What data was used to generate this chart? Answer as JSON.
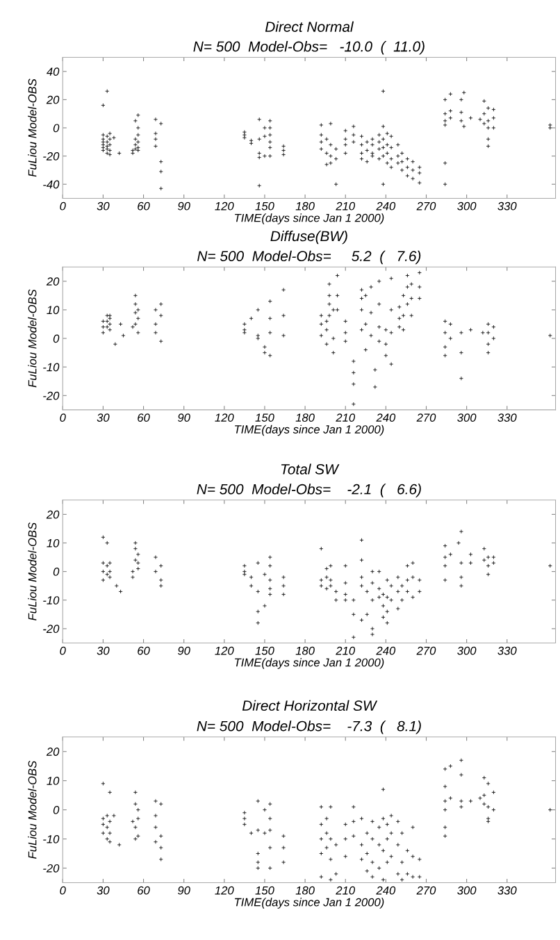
{
  "chart_data": [
    {
      "type": "scatter",
      "title": "Direct Normal",
      "subtitle": "N= 500  Model-Obs=   -10.0  (  11.0)",
      "xlabel": "TIME(days since Jan 1 2000)",
      "ylabel": "FuLiou Model-OBS",
      "xlim": [
        0,
        366
      ],
      "xticks": [
        0,
        30,
        60,
        90,
        120,
        150,
        180,
        210,
        240,
        270,
        300,
        330
      ],
      "ylim": [
        -50,
        50
      ],
      "yticks": [
        -40,
        -20,
        0,
        20,
        40
      ],
      "marker": "cross",
      "grid": false,
      "series": [
        {
          "color": "#000000",
          "x": [
            30,
            30,
            30,
            30,
            30,
            30,
            30,
            33,
            33,
            33,
            33,
            33,
            33,
            35,
            35,
            35,
            35,
            35,
            38,
            42,
            52,
            52,
            54,
            54,
            54,
            54,
            56,
            56,
            56,
            56,
            56,
            56,
            69,
            69,
            69,
            69,
            73,
            73,
            73,
            73,
            135,
            135,
            135,
            140,
            140,
            146,
            146,
            146,
            146,
            146,
            150,
            150,
            150,
            154,
            154,
            154,
            154,
            154,
            154,
            164,
            164,
            164,
            192,
            192,
            192,
            192,
            196,
            196,
            196,
            199,
            199,
            199,
            199,
            203,
            203,
            203,
            210,
            210,
            210,
            210,
            216,
            216,
            216,
            222,
            222,
            222,
            222,
            226,
            226,
            226,
            230,
            230,
            230,
            230,
            235,
            235,
            235,
            235,
            238,
            238,
            238,
            238,
            238,
            238,
            241,
            241,
            241,
            241,
            244,
            244,
            244,
            244,
            249,
            249,
            249,
            252,
            252,
            252,
            256,
            256,
            256,
            260,
            260,
            260,
            265,
            265,
            265,
            284,
            284,
            284,
            284,
            284,
            284,
            288,
            288,
            288,
            296,
            296,
            296,
            298,
            298,
            303,
            310,
            313,
            313,
            313,
            316,
            316,
            316,
            316,
            316,
            320,
            320,
            320,
            362,
            362
          ],
          "values": [
            16,
            -5,
            -8,
            -10,
            -12,
            -14,
            -16,
            26,
            -6,
            -10,
            -13,
            -15,
            -18,
            -4,
            -8,
            -12,
            -16,
            -19,
            -7,
            -18,
            -16,
            -18,
            5,
            -8,
            -12,
            -15,
            9,
            0,
            -5,
            -10,
            -14,
            -16,
            6,
            -4,
            -8,
            -13,
            3,
            -24,
            -31,
            -43,
            -3,
            -5,
            -7,
            -9,
            -11,
            6,
            -8,
            -18,
            -21,
            -41,
            0,
            -6,
            -20,
            5,
            0,
            -5,
            -10,
            -14,
            -20,
            -13,
            -16,
            -19,
            2,
            -5,
            -10,
            -15,
            -8,
            -18,
            -26,
            3,
            -12,
            -20,
            -25,
            -15,
            -22,
            -40,
            -2,
            -8,
            -12,
            -18,
            1,
            -5,
            -10,
            -6,
            -12,
            -18,
            -22,
            -10,
            -16,
            -24,
            -8,
            -12,
            -18,
            -20,
            -5,
            -10,
            -15,
            -22,
            26,
            1,
            -8,
            -14,
            -20,
            -40,
            -4,
            -12,
            -18,
            -25,
            -6,
            -14,
            -22,
            -28,
            -12,
            -20,
            -25,
            -18,
            -24,
            -30,
            -22,
            -28,
            -34,
            -24,
            -30,
            -36,
            -28,
            -32,
            -39,
            20,
            10,
            5,
            2,
            -25,
            -40,
            12,
            7,
            24,
            20,
            11,
            5,
            25,
            1,
            7,
            6,
            19,
            10,
            3,
            14,
            5,
            0,
            -8,
            -13,
            13,
            7,
            0,
            0,
            2
          ]
        }
      ]
    },
    {
      "type": "scatter",
      "title": "Diffuse(BW)",
      "subtitle": "N= 500  Model-Obs=     5.2  (   7.6)",
      "xlabel": "TIME(days since Jan 1 2000)",
      "ylabel": "FuLiou Model-OBS",
      "xlim": [
        0,
        366
      ],
      "xticks": [
        0,
        30,
        60,
        90,
        120,
        150,
        180,
        210,
        240,
        270,
        300,
        330
      ],
      "ylim": [
        -25,
        25
      ],
      "yticks": [
        -20,
        -10,
        0,
        10,
        20
      ],
      "marker": "cross",
      "grid": false,
      "series": [
        {
          "color": "#000000",
          "x": [
            30,
            30,
            30,
            33,
            33,
            33,
            35,
            35,
            35,
            35,
            39,
            43,
            45,
            52,
            54,
            54,
            54,
            54,
            56,
            56,
            56,
            69,
            69,
            69,
            73,
            73,
            73,
            135,
            135,
            135,
            140,
            145,
            145,
            145,
            150,
            150,
            154,
            154,
            154,
            154,
            164,
            164,
            164,
            192,
            192,
            192,
            196,
            196,
            196,
            198,
            198,
            198,
            198,
            201,
            201,
            201,
            204,
            204,
            204,
            210,
            210,
            210,
            216,
            216,
            216,
            216,
            222,
            222,
            222,
            222,
            225,
            225,
            225,
            229,
            229,
            229,
            232,
            232,
            235,
            235,
            235,
            235,
            240,
            240,
            240,
            244,
            244,
            244,
            244,
            250,
            250,
            250,
            253,
            253,
            253,
            256,
            256,
            256,
            259,
            259,
            259,
            265,
            265,
            265,
            284,
            284,
            284,
            284,
            288,
            288,
            296,
            296,
            296,
            303,
            312,
            316,
            316,
            316,
            316,
            320,
            320,
            362
          ],
          "values": [
            2,
            4,
            6,
            4,
            6,
            8,
            5,
            7,
            8,
            3,
            -2,
            5,
            1,
            4,
            5,
            9,
            12,
            15,
            7,
            10,
            2,
            10,
            5,
            2,
            12,
            8,
            -1,
            2,
            3,
            5,
            7,
            10,
            1,
            0,
            -3,
            -5,
            13,
            7,
            2,
            -6,
            17,
            8,
            1,
            8,
            5,
            1,
            6,
            3,
            -2,
            19,
            15,
            12,
            8,
            10,
            0,
            -5,
            22,
            15,
            10,
            6,
            2,
            -1,
            -8,
            -12,
            -16,
            -23,
            17,
            14,
            10,
            3,
            15,
            5,
            -4,
            18,
            9,
            1,
            -11,
            -17,
            20,
            12,
            4,
            -1,
            3,
            -2,
            -6,
            21,
            10,
            2,
            -9,
            11,
            7,
            4,
            15,
            8,
            3,
            22,
            18,
            12,
            19,
            14,
            8,
            23,
            18,
            14,
            6,
            2,
            -3,
            -6,
            5,
            0,
            2,
            -5,
            -14,
            3,
            2,
            5,
            2,
            -2,
            -5,
            4,
            0,
            1
          ]
        }
      ]
    },
    {
      "type": "scatter",
      "title": "Total SW",
      "subtitle": "N= 500  Model-Obs=    -2.1  (   6.6)",
      "xlabel": "TIME(days since Jan 1 2000)",
      "ylabel": "FuLiou Model-OBS",
      "xlim": [
        0,
        366
      ],
      "xticks": [
        0,
        30,
        60,
        90,
        120,
        150,
        180,
        210,
        240,
        270,
        300,
        330
      ],
      "ylim": [
        -25,
        25
      ],
      "yticks": [
        -20,
        -10,
        0,
        10,
        20
      ],
      "marker": "cross",
      "grid": false,
      "series": [
        {
          "color": "#000000",
          "x": [
            30,
            30,
            30,
            30,
            33,
            33,
            33,
            35,
            35,
            35,
            40,
            43,
            52,
            52,
            54,
            54,
            54,
            56,
            56,
            56,
            69,
            69,
            73,
            73,
            73,
            135,
            135,
            135,
            140,
            140,
            145,
            145,
            145,
            145,
            150,
            150,
            154,
            154,
            154,
            154,
            154,
            164,
            164,
            164,
            192,
            192,
            192,
            196,
            196,
            196,
            199,
            199,
            199,
            203,
            203,
            210,
            210,
            210,
            210,
            216,
            216,
            216,
            222,
            222,
            222,
            222,
            222,
            226,
            226,
            230,
            230,
            230,
            230,
            230,
            235,
            235,
            235,
            238,
            238,
            238,
            241,
            241,
            241,
            241,
            244,
            244,
            249,
            249,
            249,
            252,
            252,
            256,
            256,
            256,
            260,
            260,
            260,
            265,
            265,
            284,
            284,
            284,
            284,
            288,
            294,
            296,
            296,
            296,
            296,
            303,
            303,
            313,
            313,
            316,
            316,
            316,
            320,
            320,
            362
          ],
          "values": [
            12,
            3,
            0,
            -3,
            10,
            2,
            -1,
            3,
            0,
            -2,
            -5,
            -7,
            0,
            -2,
            10,
            8,
            4,
            6,
            3,
            1,
            5,
            0,
            2,
            -3,
            -5,
            2,
            0,
            -1,
            -2,
            -5,
            3,
            -7,
            -14,
            -18,
            -1,
            -12,
            5,
            2,
            -3,
            -6,
            -8,
            -2,
            -5,
            -8,
            8,
            -3,
            -5,
            1,
            -2,
            -6,
            2,
            -3,
            -5,
            -7,
            -10,
            2,
            -4,
            -8,
            -10,
            -10,
            -15,
            -23,
            11,
            4,
            -2,
            -5,
            -17,
            -7,
            -15,
            0,
            -4,
            -10,
            -20,
            -22,
            0,
            -6,
            -9,
            -8,
            -12,
            -16,
            -3,
            -9,
            -14,
            -18,
            -5,
            -10,
            -2,
            -7,
            -13,
            -5,
            -10,
            2,
            -3,
            -7,
            3,
            -2,
            -9,
            -3,
            -7,
            9,
            5,
            2,
            -3,
            6,
            10,
            14,
            3,
            -2,
            -5,
            6,
            3,
            8,
            4,
            5,
            2,
            -1,
            5,
            3,
            2
          ]
        }
      ]
    },
    {
      "type": "scatter",
      "title": "Direct Horizontal SW",
      "subtitle": "N= 500  Model-Obs=    -7.3  (   8.1)",
      "xlabel": "TIME(days since Jan 1 2000)",
      "ylabel": "FuLiou Model-OBS",
      "xlim": [
        0,
        366
      ],
      "xticks": [
        0,
        30,
        60,
        90,
        120,
        150,
        180,
        210,
        240,
        270,
        300,
        330
      ],
      "ylim": [
        -25,
        25
      ],
      "yticks": [
        -20,
        -10,
        0,
        10,
        20
      ],
      "marker": "cross",
      "grid": false,
      "series": [
        {
          "color": "#000000",
          "x": [
            30,
            30,
            30,
            30,
            33,
            33,
            33,
            35,
            35,
            35,
            35,
            38,
            42,
            52,
            54,
            54,
            54,
            54,
            56,
            56,
            56,
            69,
            69,
            69,
            69,
            73,
            73,
            73,
            73,
            135,
            135,
            135,
            140,
            145,
            145,
            145,
            145,
            145,
            150,
            150,
            154,
            154,
            154,
            154,
            154,
            164,
            164,
            164,
            192,
            192,
            192,
            192,
            192,
            196,
            196,
            196,
            199,
            199,
            199,
            199,
            203,
            203,
            210,
            210,
            210,
            216,
            216,
            216,
            222,
            222,
            222,
            226,
            226,
            226,
            230,
            230,
            230,
            230,
            235,
            235,
            235,
            238,
            238,
            238,
            238,
            241,
            241,
            241,
            244,
            244,
            244,
            249,
            249,
            249,
            252,
            252,
            252,
            256,
            256,
            260,
            260,
            260,
            265,
            265,
            284,
            284,
            284,
            284,
            284,
            284,
            288,
            288,
            296,
            296,
            296,
            296,
            303,
            310,
            313,
            313,
            313,
            316,
            316,
            316,
            316,
            320,
            320,
            362
          ],
          "values": [
            9,
            -3,
            -5,
            -8,
            -2,
            -6,
            -10,
            6,
            -4,
            -8,
            -11,
            -2,
            -12,
            -4,
            6,
            2,
            -6,
            -10,
            0,
            -3,
            -9,
            3,
            -2,
            -6,
            -11,
            2,
            -9,
            -13,
            -17,
            -1,
            -3,
            -5,
            -8,
            3,
            -7,
            -15,
            -18,
            -20,
            0,
            -8,
            2,
            -3,
            -7,
            -13,
            -20,
            -9,
            -13,
            -18,
            1,
            -5,
            -10,
            -15,
            -23,
            -3,
            -8,
            -13,
            1,
            -10,
            -17,
            -24,
            -12,
            -22,
            -5,
            -10,
            -16,
            1,
            -4,
            -9,
            -3,
            -12,
            -17,
            -8,
            -15,
            -21,
            -4,
            -10,
            -18,
            -23,
            -6,
            -12,
            -20,
            7,
            -3,
            -14,
            -24,
            -5,
            -10,
            -18,
            -2,
            -8,
            -16,
            -4,
            -12,
            -22,
            -8,
            -18,
            -24,
            -14,
            -22,
            -6,
            -16,
            -23,
            -17,
            -23,
            14,
            8,
            3,
            0,
            -6,
            -9,
            15,
            4,
            17,
            12,
            3,
            1,
            3,
            4,
            11,
            5,
            2,
            9,
            1,
            -3,
            -4,
            6,
            0,
            0
          ]
        }
      ]
    }
  ]
}
